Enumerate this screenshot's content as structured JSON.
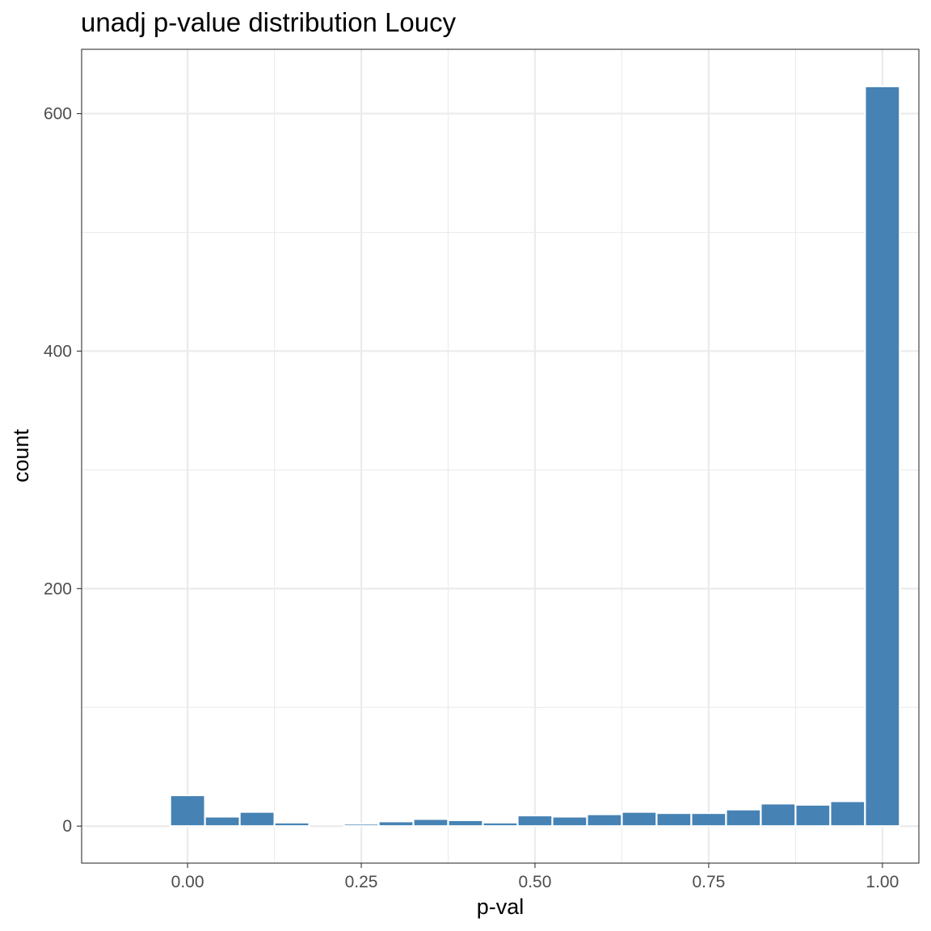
{
  "chart_data": {
    "type": "bar",
    "title": "unadj p-value distribution Loucy",
    "xlabel": "p-val",
    "ylabel": "count",
    "x": [
      0.0,
      0.05,
      0.1,
      0.15,
      0.2,
      0.25,
      0.3,
      0.35,
      0.4,
      0.45,
      0.5,
      0.55,
      0.6,
      0.65,
      0.7,
      0.75,
      0.8,
      0.85,
      0.9,
      0.95,
      1.0
    ],
    "values": [
      26,
      8,
      12,
      3,
      0,
      2,
      4,
      6,
      5,
      3,
      9,
      8,
      10,
      12,
      11,
      11,
      14,
      19,
      18,
      21,
      623
    ],
    "bin_width": 0.05,
    "xlim": [
      -0.1525,
      1.0525
    ],
    "ylim": [
      -31.15,
      654.15
    ],
    "x_ticks": [
      0,
      0.25,
      0.5,
      0.75,
      1
    ],
    "x_tick_labels": [
      "0.00",
      "0.25",
      "0.50",
      "0.75",
      "1.00"
    ],
    "y_ticks": [
      0,
      200,
      400,
      600
    ],
    "y_tick_labels": [
      "0",
      "200",
      "400",
      "600"
    ],
    "bar_fill": "#4682b4",
    "bar_outline": "#ffffff",
    "grid": true,
    "legend": "none"
  }
}
